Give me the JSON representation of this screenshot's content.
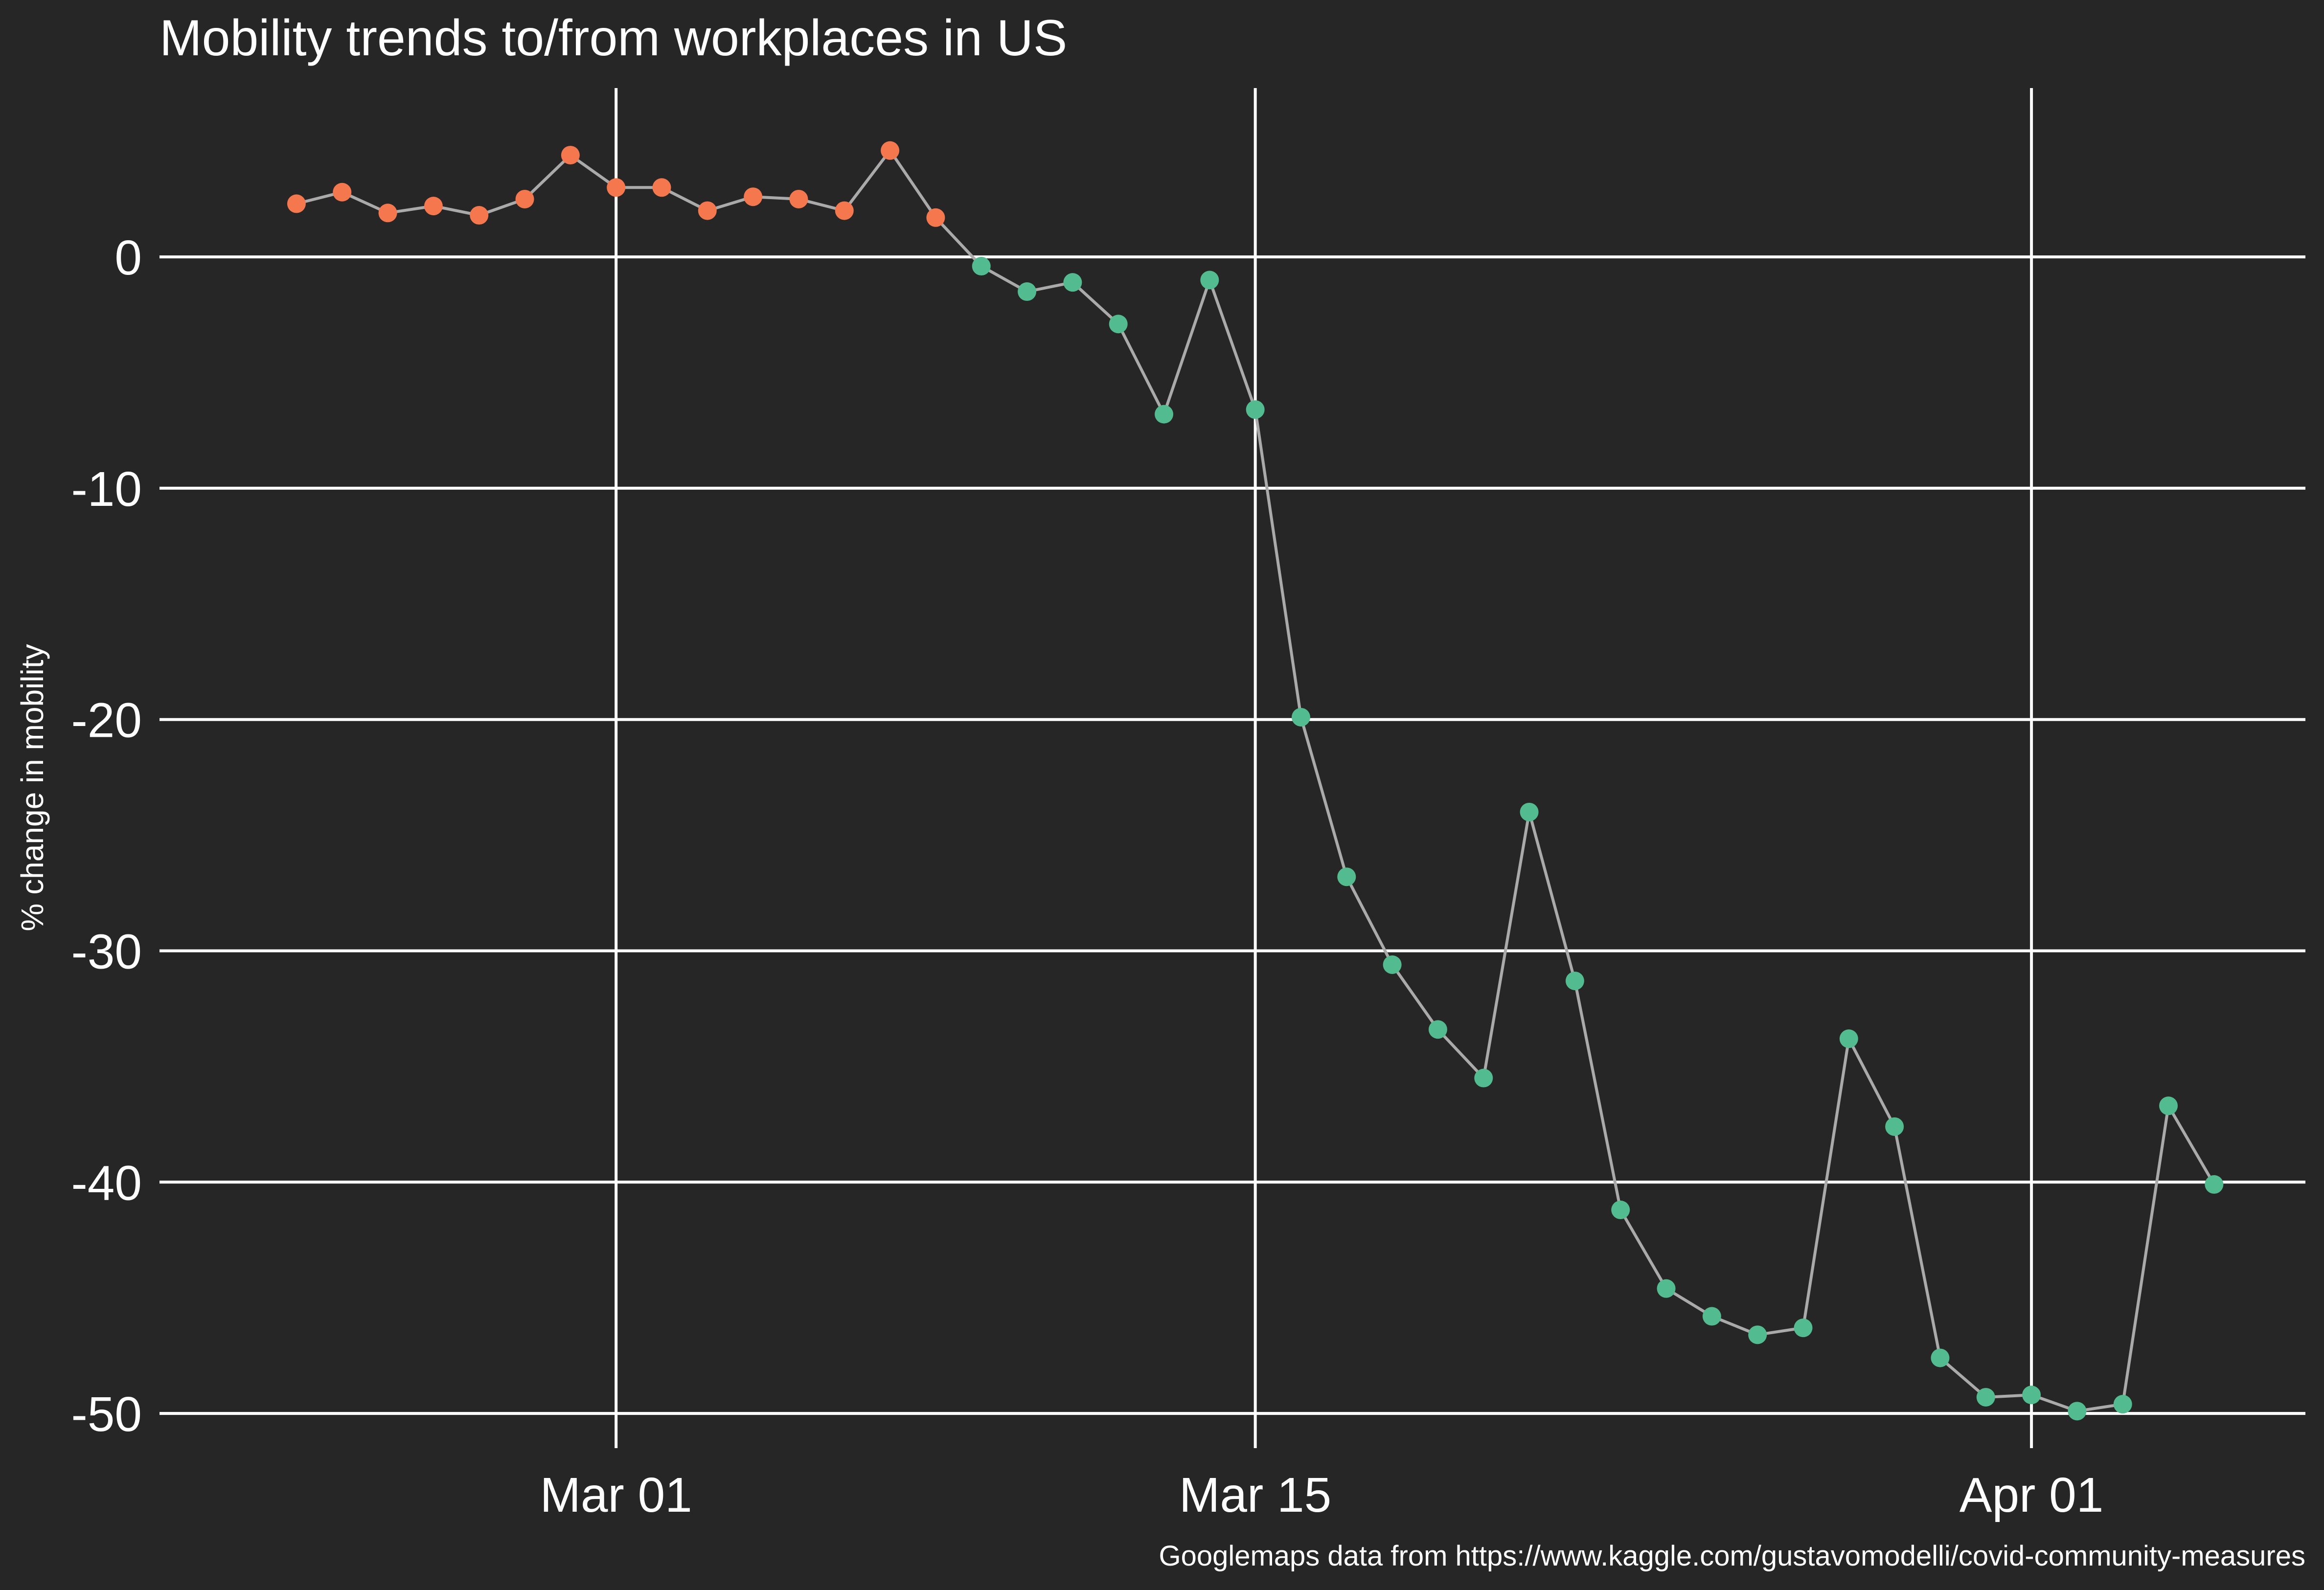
{
  "chart_data": {
    "type": "scatter",
    "title": "Mobility trends to/from workplaces in US",
    "xlabel": "",
    "ylabel": "% change in mobility",
    "caption": "Googlemaps data from https://www.kaggle.com/gustavomodelli/covid-community-measures",
    "x_ticks": [
      {
        "label": "Mar 01",
        "date": "2020-03-01"
      },
      {
        "label": "Mar 15",
        "date": "2020-03-15"
      },
      {
        "label": "Apr 01",
        "date": "2020-04-01"
      }
    ],
    "y_ticks": [
      0,
      -10,
      -20,
      -30,
      -40,
      -50
    ],
    "xlim": [
      "2020-02-20",
      "2020-04-07"
    ],
    "ylim": [
      -51.5,
      7.3
    ],
    "grid": true,
    "connect_points": true,
    "colors": {
      "background": "#262626",
      "grid": "#ffffff",
      "line": "#aaaaaa",
      "positive": "#f4774e",
      "negative": "#52bb8f"
    },
    "points": [
      {
        "date": "2020-02-23",
        "value": 2.3
      },
      {
        "date": "2020-02-24",
        "value": 2.8
      },
      {
        "date": "2020-02-25",
        "value": 1.9
      },
      {
        "date": "2020-02-26",
        "value": 2.2
      },
      {
        "date": "2020-02-27",
        "value": 1.8
      },
      {
        "date": "2020-02-28",
        "value": 2.5
      },
      {
        "date": "2020-02-29",
        "value": 4.4
      },
      {
        "date": "2020-03-01",
        "value": 3.0
      },
      {
        "date": "2020-03-02",
        "value": 3.0
      },
      {
        "date": "2020-03-03",
        "value": 2.0
      },
      {
        "date": "2020-03-04",
        "value": 2.6
      },
      {
        "date": "2020-03-05",
        "value": 2.5
      },
      {
        "date": "2020-03-06",
        "value": 2.0
      },
      {
        "date": "2020-03-07",
        "value": 4.6
      },
      {
        "date": "2020-03-08",
        "value": 1.7
      },
      {
        "date": "2020-03-09",
        "value": -0.4
      },
      {
        "date": "2020-03-10",
        "value": -1.5
      },
      {
        "date": "2020-03-11",
        "value": -1.1
      },
      {
        "date": "2020-03-12",
        "value": -2.9
      },
      {
        "date": "2020-03-13",
        "value": -6.8
      },
      {
        "date": "2020-03-14",
        "value": -1.0
      },
      {
        "date": "2020-03-15",
        "value": -6.6
      },
      {
        "date": "2020-03-16",
        "value": -19.9
      },
      {
        "date": "2020-03-17",
        "value": -26.8
      },
      {
        "date": "2020-03-18",
        "value": -30.6
      },
      {
        "date": "2020-03-19",
        "value": -33.4
      },
      {
        "date": "2020-03-20",
        "value": -35.5
      },
      {
        "date": "2020-03-21",
        "value": -24.0
      },
      {
        "date": "2020-03-22",
        "value": -31.3
      },
      {
        "date": "2020-03-23",
        "value": -41.2
      },
      {
        "date": "2020-03-24",
        "value": -44.6
      },
      {
        "date": "2020-03-25",
        "value": -45.8
      },
      {
        "date": "2020-03-26",
        "value": -46.6
      },
      {
        "date": "2020-03-27",
        "value": -46.3
      },
      {
        "date": "2020-03-28",
        "value": -33.8
      },
      {
        "date": "2020-03-29",
        "value": -37.6
      },
      {
        "date": "2020-03-30",
        "value": -47.6
      },
      {
        "date": "2020-03-31",
        "value": -49.3
      },
      {
        "date": "2020-04-01",
        "value": -49.2
      },
      {
        "date": "2020-04-02",
        "value": -49.9
      },
      {
        "date": "2020-04-03",
        "value": -49.6
      },
      {
        "date": "2020-04-04",
        "value": -36.7
      },
      {
        "date": "2020-04-05",
        "value": -40.1
      }
    ]
  }
}
